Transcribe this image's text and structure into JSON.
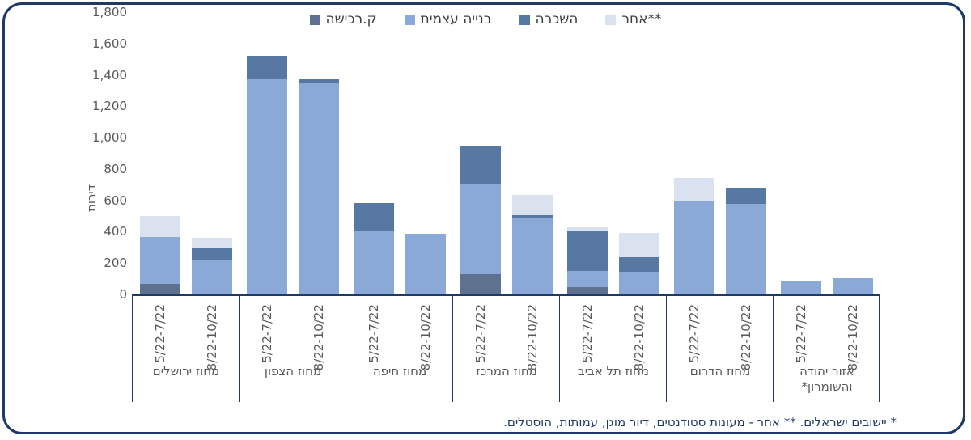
{
  "colors": {
    "frame": "#1f3a68",
    "axis_text": "#595959",
    "footnote_text": "#1f3a68",
    "series": [
      "#5E7290",
      "#8BA9D6",
      "#5878A4",
      "#DAE2F0"
    ]
  },
  "legend": {
    "items": [
      {
        "label": "ק.רכישה",
        "color": "#5E7290"
      },
      {
        "label": "בנייה עצמית",
        "color": "#8BA9D6"
      },
      {
        "label": "השכרה",
        "color": "#5878A4"
      },
      {
        "label": "אחר**",
        "color": "#DAE2F0"
      }
    ]
  },
  "footnote": "* יישובים ישראלים. ** אחר - מעונות סטודנטים, דיור מוגן, עמותות, הוסטלים.",
  "chart_data": {
    "type": "bar",
    "subtype": "stacked",
    "title": "",
    "ylabel": "דירות",
    "xlabel": "",
    "ylim": [
      0,
      1800
    ],
    "ytick_step": 200,
    "grid": false,
    "legend_position": "top-center",
    "series_names": [
      "ק.רכישה",
      "בנייה עצמית",
      "השכרה",
      "אחר**"
    ],
    "stack_order": "bottom-to-top follows series_names",
    "groups": [
      {
        "district": "מחוז ירושלים",
        "bars": [
          {
            "period": "5/22-7/22",
            "values": [
              65,
              300,
              0,
              135
            ]
          },
          {
            "period": "8/22-10/22",
            "values": [
              0,
              215,
              80,
              65
            ]
          }
        ]
      },
      {
        "district": "מחוז הצפון",
        "bars": [
          {
            "period": "5/22-7/22",
            "values": [
              0,
              1370,
              150,
              0
            ]
          },
          {
            "period": "8/22-10/22",
            "values": [
              0,
              1345,
              25,
              0
            ]
          }
        ]
      },
      {
        "district": "מחוז חיפה",
        "bars": [
          {
            "period": "5/22-7/22",
            "values": [
              0,
              400,
              185,
              0
            ]
          },
          {
            "period": "8/22-10/22",
            "values": [
              0,
              385,
              0,
              0
            ]
          }
        ]
      },
      {
        "district": "מחוז המרכז",
        "bars": [
          {
            "period": "5/22-7/22",
            "values": [
              130,
              570,
              250,
              0
            ]
          },
          {
            "period": "8/22-10/22",
            "values": [
              0,
              490,
              15,
              130
            ]
          }
        ]
      },
      {
        "district": "מחוז תל אביב",
        "bars": [
          {
            "period": "5/22-7/22",
            "values": [
              45,
              105,
              260,
              20
            ]
          },
          {
            "period": "8/22-10/22",
            "values": [
              0,
              145,
              90,
              155
            ]
          }
        ]
      },
      {
        "district": "מחוז הדרום",
        "bars": [
          {
            "period": "5/22-7/22",
            "values": [
              0,
              595,
              0,
              150
            ]
          },
          {
            "period": "8/22-10/22",
            "values": [
              0,
              580,
              95,
              0
            ]
          }
        ]
      },
      {
        "district": "אזור יהודה והשומרון*",
        "bars": [
          {
            "period": "5/22-7/22",
            "values": [
              0,
              85,
              0,
              0
            ]
          },
          {
            "period": "8/22-10/22",
            "values": [
              0,
              105,
              0,
              0
            ]
          }
        ]
      }
    ]
  }
}
